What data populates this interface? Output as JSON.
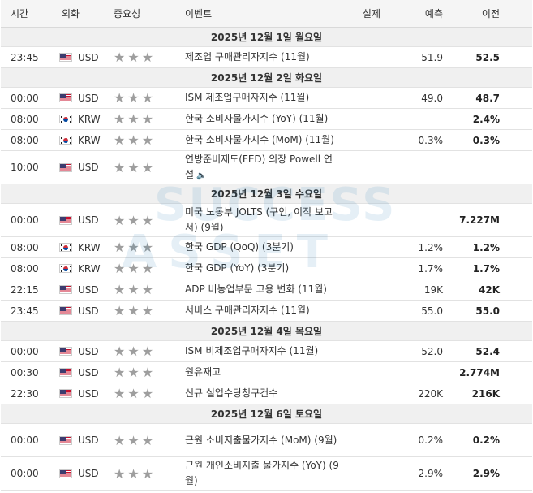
{
  "header": {
    "time": "시간",
    "currency": "외화",
    "importance": "중요성",
    "event": "이벤트",
    "actual": "실제",
    "forecast": "예측",
    "previous": "이전"
  },
  "watermark": {
    "line1": "SUCCESS",
    "line2": "ASSET"
  },
  "importance_stars": "★★★",
  "groups": [
    {
      "date": "2025년 12월 1일 월요일",
      "rows": [
        {
          "time": "23:45",
          "flag": "us",
          "currency": "USD",
          "event": "제조업 구매관리자지수 (11월)",
          "actual": "",
          "forecast": "51.9",
          "previous": "52.5",
          "tall": false,
          "sound": false
        }
      ]
    },
    {
      "date": "2025년 12월 2일 화요일",
      "rows": [
        {
          "time": "00:00",
          "flag": "us",
          "currency": "USD",
          "event": "ISM 제조업구매자지수 (11월)",
          "actual": "",
          "forecast": "49.0",
          "previous": "48.7",
          "tall": false,
          "sound": false
        },
        {
          "time": "08:00",
          "flag": "kr",
          "currency": "KRW",
          "event": "한국 소비자물가지수 (YoY) (11월)",
          "actual": "",
          "forecast": "",
          "previous": "2.4%",
          "tall": false,
          "sound": false
        },
        {
          "time": "08:00",
          "flag": "kr",
          "currency": "KRW",
          "event": "한국 소비자물가지수 (MoM) (11월)",
          "actual": "",
          "forecast": "-0.3%",
          "previous": "0.3%",
          "tall": false,
          "sound": false
        },
        {
          "time": "10:00",
          "flag": "us",
          "currency": "USD",
          "event": "연방준비제도(FED) 의장 Powell 연설",
          "actual": "",
          "forecast": "",
          "previous": "",
          "tall": true,
          "sound": true
        }
      ]
    },
    {
      "date": "2025년 12월 3일 수요일",
      "rows": [
        {
          "time": "00:00",
          "flag": "us",
          "currency": "USD",
          "event": "미국 노동부 JOLTS (구인, 이직 보고서) (9월)",
          "actual": "",
          "forecast": "",
          "previous": "7.227M",
          "tall": true,
          "sound": false
        },
        {
          "time": "08:00",
          "flag": "kr",
          "currency": "KRW",
          "event": "한국 GDP (QoQ) (3분기)",
          "actual": "",
          "forecast": "1.2%",
          "previous": "1.2%",
          "tall": false,
          "sound": false
        },
        {
          "time": "08:00",
          "flag": "kr",
          "currency": "KRW",
          "event": "한국 GDP (YoY) (3분기)",
          "actual": "",
          "forecast": "1.7%",
          "previous": "1.7%",
          "tall": false,
          "sound": false
        },
        {
          "time": "22:15",
          "flag": "us",
          "currency": "USD",
          "event": "ADP 비농업부문 고용 변화 (11월)",
          "actual": "",
          "forecast": "19K",
          "previous": "42K",
          "tall": false,
          "sound": false
        },
        {
          "time": "23:45",
          "flag": "us",
          "currency": "USD",
          "event": "서비스 구매관리자지수 (11월)",
          "actual": "",
          "forecast": "55.0",
          "previous": "55.0",
          "tall": false,
          "sound": false
        }
      ]
    },
    {
      "date": "2025년 12월 4일 목요일",
      "rows": [
        {
          "time": "00:00",
          "flag": "us",
          "currency": "USD",
          "event": "ISM 비제조업구매자지수 (11월)",
          "actual": "",
          "forecast": "52.0",
          "previous": "52.4",
          "tall": false,
          "sound": false
        },
        {
          "time": "00:30",
          "flag": "us",
          "currency": "USD",
          "event": "원유재고",
          "actual": "",
          "forecast": "",
          "previous": "2.774M",
          "tall": false,
          "sound": false
        },
        {
          "time": "22:30",
          "flag": "us",
          "currency": "USD",
          "event": "신규 실업수당청구건수",
          "actual": "",
          "forecast": "220K",
          "previous": "216K",
          "tall": false,
          "sound": false
        }
      ]
    },
    {
      "date": "2025년 12월 6일 토요일",
      "rows": [
        {
          "time": "00:00",
          "flag": "us",
          "currency": "USD",
          "event": "근원 소비지출물가지수 (MoM) (9월)",
          "actual": "",
          "forecast": "0.2%",
          "previous": "0.2%",
          "tall": true,
          "sound": false
        },
        {
          "time": "00:00",
          "flag": "us",
          "currency": "USD",
          "event": "근원 개인소비지출 물가지수 (YoY) (9월)",
          "actual": "",
          "forecast": "2.9%",
          "previous": "2.9%",
          "tall": true,
          "sound": false
        }
      ]
    }
  ]
}
